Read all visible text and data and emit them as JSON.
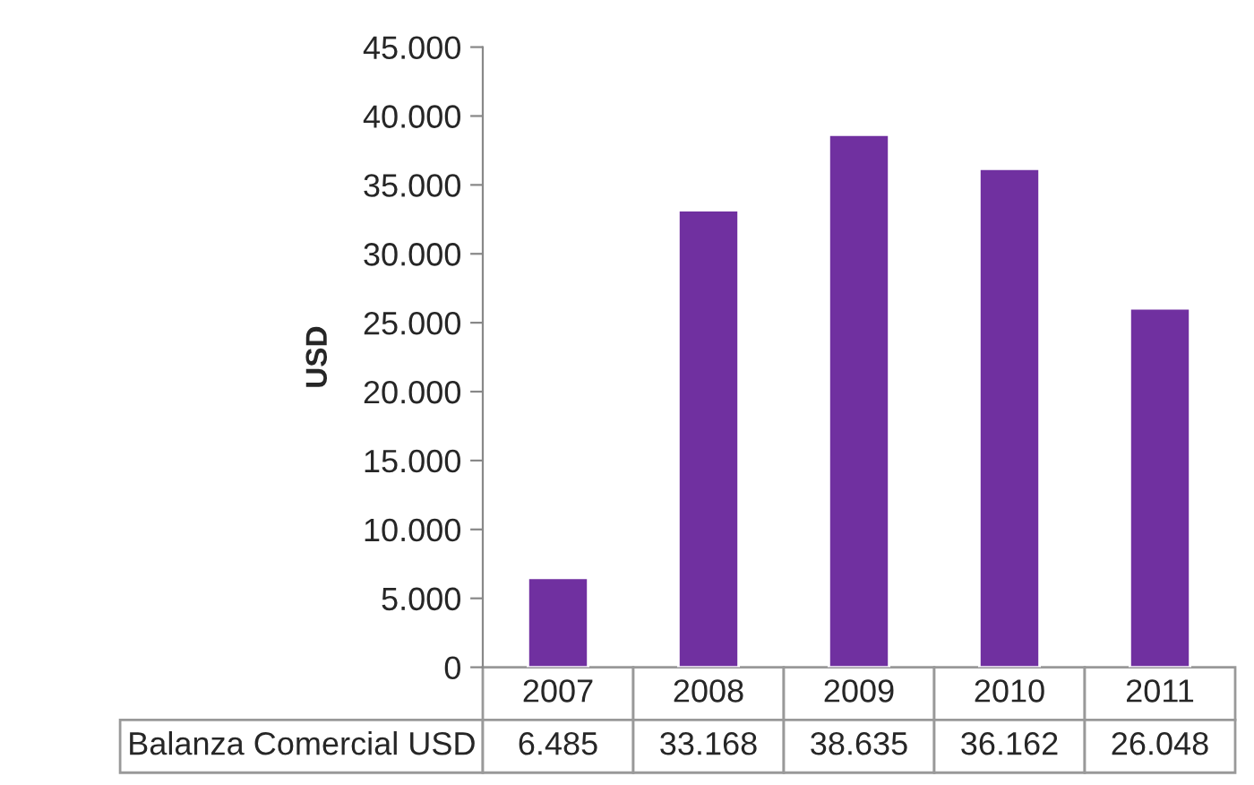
{
  "chart_data": {
    "type": "bar",
    "ylabel": "USD",
    "categories": [
      "2007",
      "2008",
      "2009",
      "2010",
      "2011"
    ],
    "series": [
      {
        "name": "Balanza Comercial USD",
        "color": "#7030a0",
        "values": [
          6485,
          33168,
          38635,
          36162,
          26048
        ],
        "value_labels": [
          "6.485",
          "33.168",
          "38.635",
          "36.162",
          "26.048"
        ]
      }
    ],
    "ylim": [
      0,
      45000
    ],
    "yticks": [
      0,
      {
        "value": 5000,
        "label": "5.000"
      },
      {
        "value": 10000,
        "label": "10.000"
      },
      {
        "value": 15000,
        "label": "15.000"
      },
      {
        "value": 20000,
        "label": "20.000"
      },
      {
        "value": 25000,
        "label": "25.000"
      },
      {
        "value": 30000,
        "label": "30.000"
      },
      {
        "value": 35000,
        "label": "35.000"
      },
      {
        "value": 40000,
        "label": "40.000"
      },
      {
        "value": 45000,
        "label": "45.000"
      }
    ],
    "grid": false,
    "legend": false
  }
}
